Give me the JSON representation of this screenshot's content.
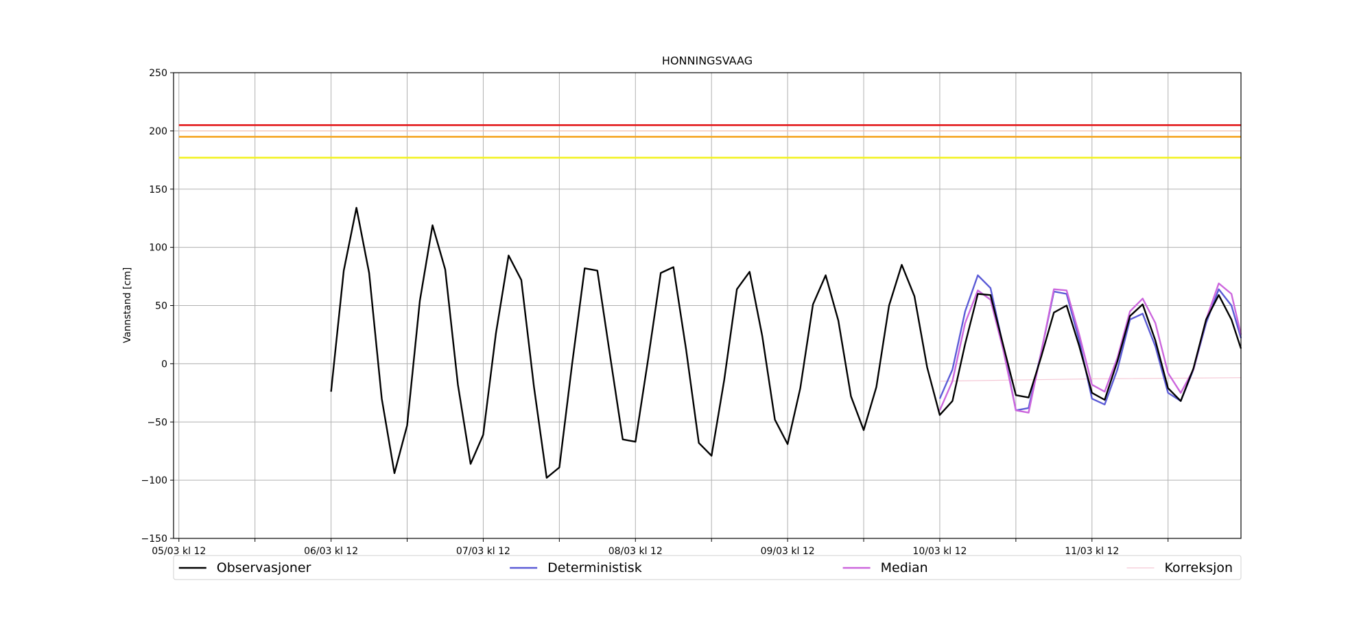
{
  "chart_data": {
    "type": "line",
    "title": "HONNINGSVAAG",
    "ylabel": "Vannstand [cm]",
    "xlim": [
      -0.84,
      167.5
    ],
    "ylim": [
      -150,
      250
    ],
    "xticks": [
      {
        "value": 0,
        "label": "05/03 kl 12"
      },
      {
        "value": 24,
        "label": "06/03 kl 12"
      },
      {
        "value": 48,
        "label": "07/03 kl 12"
      },
      {
        "value": 72,
        "label": "08/03 kl 12"
      },
      {
        "value": 96,
        "label": "09/03 kl 12"
      },
      {
        "value": 120,
        "label": "10/03 kl 12"
      },
      {
        "value": 144,
        "label": "11/03 kl 12"
      }
    ],
    "xminorticks": [
      12,
      36,
      60,
      84,
      108,
      132,
      156
    ],
    "yticks": [
      {
        "value": -150,
        "label": "−150"
      },
      {
        "value": -100,
        "label": "−100"
      },
      {
        "value": -50,
        "label": "−50"
      },
      0,
      50,
      100,
      150,
      200,
      250
    ],
    "grid": true,
    "thresholds": [
      {
        "color": "#e31a1c",
        "x": [
          0,
          167.5
        ],
        "values": [
          205,
          205
        ]
      },
      {
        "color": "#f6c2b0",
        "x": [
          0,
          167.5
        ],
        "values": [
          200,
          200
        ]
      },
      {
        "color": "#f5a623",
        "x": [
          0,
          167.5
        ],
        "values": [
          195,
          195
        ]
      },
      {
        "color": "#f2f21f",
        "x": [
          0,
          167.5
        ],
        "values": [
          177,
          177
        ]
      }
    ],
    "series": [
      {
        "name": "Observasjoner",
        "color": "#000000",
        "x": [
          24,
          26,
          28,
          30,
          32,
          34,
          36,
          38,
          40,
          42,
          44,
          46,
          48,
          50,
          52,
          54,
          56,
          58,
          60,
          62,
          64,
          66,
          68,
          70,
          72,
          74,
          76,
          78,
          80,
          82,
          84,
          86,
          88,
          90,
          92,
          94,
          96,
          98,
          100,
          102,
          104,
          106,
          108,
          110,
          112,
          114,
          116,
          118,
          120,
          122,
          124,
          126,
          128,
          130,
          132,
          134,
          136,
          138,
          140,
          142,
          144,
          146,
          148,
          150,
          152,
          154,
          156,
          158,
          160,
          162,
          164,
          166,
          167.5
        ],
        "values": [
          -24,
          80,
          134,
          78,
          -30,
          -94,
          -53,
          54,
          119,
          81,
          -18,
          -86,
          -61,
          26,
          93,
          72,
          -20,
          -98,
          -89,
          -1,
          82,
          80,
          7,
          -65,
          -67,
          4,
          78,
          83,
          12,
          -68,
          -79,
          -14,
          64,
          79,
          24,
          -48,
          -69,
          -21,
          51,
          76,
          37,
          -28,
          -57,
          -20,
          50,
          85,
          58,
          -3,
          -44,
          -32,
          17,
          60,
          59,
          16,
          -27,
          -29,
          6,
          44,
          50,
          15,
          -25,
          -31,
          2,
          41,
          51,
          20,
          -21,
          -32,
          -4,
          38,
          59,
          38,
          13
        ]
      },
      {
        "name": "Deterministisk",
        "color": "#5b5bd6",
        "x": [
          120,
          122,
          124,
          126,
          128,
          130,
          132,
          134,
          136,
          138,
          140,
          142,
          144,
          146,
          148,
          150,
          152,
          154,
          156,
          158,
          160,
          162,
          164,
          166,
          167.5
        ],
        "values": [
          -30,
          -5,
          45,
          76,
          65,
          15,
          -40,
          -38,
          10,
          62,
          60,
          20,
          -30,
          -35,
          -5,
          38,
          43,
          15,
          -25,
          -32,
          -5,
          35,
          64,
          50,
          22
        ]
      },
      {
        "name": "Median",
        "color": "#cc66dd",
        "x": [
          120,
          122,
          124,
          126,
          128,
          130,
          132,
          134,
          136,
          138,
          140,
          142,
          144,
          146,
          148,
          150,
          152,
          154,
          156,
          158,
          160,
          162,
          164,
          166,
          167.5
        ],
        "values": [
          -40,
          -15,
          35,
          63,
          55,
          12,
          -40,
          -42,
          10,
          64,
          63,
          25,
          -18,
          -24,
          5,
          45,
          56,
          35,
          -8,
          -25,
          -5,
          38,
          69,
          60,
          25
        ]
      },
      {
        "name": "Korreksjon",
        "color": "#f4c6d4",
        "x": [
          120,
          144,
          167.5
        ],
        "values": [
          -15,
          -13,
          -12
        ]
      }
    ]
  }
}
